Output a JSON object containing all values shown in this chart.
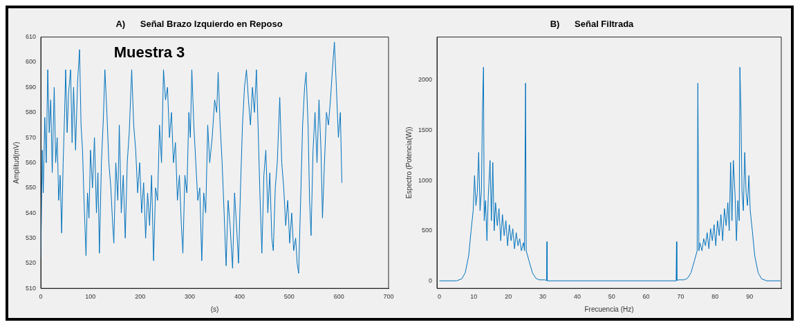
{
  "chart_data": [
    {
      "type": "line",
      "title": "A)      Señal Brazo Izquierdo en Reposo",
      "xlabel": "(s)",
      "ylabel": "Amplitud(mV)",
      "annotations": [
        "Muestra 3"
      ],
      "marker": "none",
      "xlim": [
        0,
        700
      ],
      "xticks": [
        0,
        100,
        200,
        300,
        400,
        500,
        600,
        700
      ],
      "ylim": [
        510,
        610
      ],
      "yticks": [
        510,
        520,
        530,
        540,
        550,
        560,
        570,
        580,
        590,
        600,
        610
      ],
      "series": [
        {
          "color": "#0072bd",
          "x": [
            0,
            3,
            5,
            8,
            11,
            14,
            17,
            20,
            23,
            27,
            30,
            33,
            36,
            39,
            42,
            45,
            48,
            50,
            53,
            56,
            60,
            63,
            66,
            70,
            74,
            78,
            81,
            84,
            87,
            91,
            94,
            97,
            100,
            104,
            108,
            112,
            115,
            118,
            122,
            126,
            129,
            133,
            137,
            141,
            144,
            147,
            151,
            155,
            158,
            162,
            166,
            170,
            174,
            178,
            183,
            187,
            191,
            195,
            199,
            203,
            207,
            211,
            215,
            219,
            223,
            227,
            231,
            235,
            239,
            243,
            247,
            251,
            255,
            259,
            263,
            267,
            271,
            275,
            279,
            283,
            286,
            290,
            294,
            298,
            301,
            304,
            308,
            312,
            316,
            320,
            324,
            328,
            332,
            336,
            340,
            345,
            350,
            354,
            357,
            361,
            365,
            369,
            373,
            377,
            381,
            386,
            390,
            394,
            398,
            402,
            406,
            410,
            414,
            418,
            422,
            426,
            430,
            434,
            438,
            441,
            445,
            449,
            453,
            457,
            461,
            465,
            468,
            472,
            476,
            481,
            485,
            489,
            493,
            497,
            501,
            505,
            509,
            513,
            516,
            519,
            523,
            527,
            531,
            534,
            538,
            541,
            544,
            548,
            552,
            556,
            560,
            564,
            567,
            571,
            575,
            579,
            583,
            587,
            591,
            595,
            599,
            603,
            606
          ],
          "values": [
            522,
            565,
            548,
            578,
            560,
            597,
            572,
            585,
            556,
            590,
            560,
            570,
            545,
            555,
            532,
            560,
            580,
            597,
            572,
            588,
            597,
            568,
            590,
            565,
            592,
            605,
            575,
            565,
            545,
            523,
            548,
            538,
            565,
            550,
            570,
            540,
            556,
            524,
            560,
            578,
            597,
            580,
            560,
            550,
            538,
            528,
            560,
            545,
            575,
            540,
            555,
            530,
            560,
            572,
            597,
            575,
            565,
            548,
            560,
            540,
            552,
            530,
            548,
            535,
            555,
            521,
            550,
            545,
            575,
            560,
            597,
            585,
            590,
            570,
            580,
            560,
            568,
            545,
            555,
            535,
            524,
            555,
            548,
            580,
            570,
            597,
            575,
            560,
            545,
            550,
            521,
            548,
            540,
            575,
            560,
            570,
            585,
            580,
            596,
            575,
            560,
            540,
            519,
            545,
            535,
            518,
            548,
            535,
            520,
            550,
            575,
            590,
            597,
            585,
            575,
            590,
            580,
            597,
            570,
            548,
            524,
            555,
            565,
            540,
            556,
            530,
            525,
            550,
            560,
            586,
            560,
            550,
            535,
            545,
            528,
            540,
            525,
            530,
            520,
            516,
            545,
            575,
            590,
            596,
            575,
            545,
            531,
            565,
            580,
            560,
            585,
            565,
            538,
            560,
            580,
            575,
            585,
            597,
            608,
            590,
            570,
            580,
            552
          ]
        }
      ]
    },
    {
      "type": "line",
      "title": "B)      Señal Filtrada",
      "xlabel": "Frecuencia (Hz)",
      "ylabel": "Espectro (Potencia(W))",
      "marker": "none",
      "xlim": [
        -0.7,
        99.2
      ],
      "xticks": [
        0,
        10,
        20,
        30,
        40,
        50,
        60,
        70,
        80,
        90
      ],
      "ylim": [
        -75,
        2430
      ],
      "yticks": [
        0,
        500,
        1000,
        1500,
        2000
      ],
      "series": [
        {
          "color": "#0072bd",
          "x": [
            0,
            5,
            6.5,
            7.5,
            8.5,
            9.2,
            9.8,
            10.2,
            10.6,
            11,
            11.4,
            11.8,
            12.2,
            12.5,
            12.8,
            13.0,
            13.4,
            13.8,
            14.2,
            14.7,
            15.1,
            15.5,
            15.9,
            16.3,
            16.8,
            17.3,
            17.8,
            18.3,
            18.8,
            19.3,
            19.8,
            20.3,
            20.8,
            21.3,
            21.8,
            22.3,
            22.8,
            23.3,
            23.8,
            24.4,
            24.7,
            25.0,
            25.2,
            26,
            27,
            28,
            29,
            30.5,
            31.1,
            31.2,
            31.3,
            68.7,
            68.8,
            68.9,
            69.5,
            71,
            72,
            73,
            74,
            74.8,
            75.0,
            75.3,
            75.6,
            76.2,
            76.7,
            77.2,
            77.7,
            78.2,
            78.7,
            79.2,
            79.7,
            80.2,
            80.7,
            81.2,
            81.7,
            82.2,
            82.7,
            83.2,
            83.7,
            84.1,
            84.5,
            84.9,
            85.3,
            85.8,
            86.2,
            86.6,
            87.0,
            87.2,
            87.5,
            87.8,
            88.2,
            88.6,
            89,
            89.4,
            89.8,
            90.2,
            90.8,
            91.5,
            92.5,
            93.5,
            95,
            99
          ],
          "values": [
            0,
            0,
            20,
            80,
            250,
            500,
            700,
            1050,
            750,
            880,
            1280,
            700,
            900,
            1700,
            2130,
            600,
            800,
            400,
            850,
            1200,
            600,
            1180,
            500,
            780,
            550,
            720,
            400,
            660,
            450,
            600,
            350,
            560,
            400,
            520,
            320,
            480,
            350,
            420,
            300,
            380,
            300,
            1970,
            300,
            200,
            80,
            25,
            10,
            10,
            5,
            390,
            0,
            0,
            390,
            5,
            10,
            10,
            25,
            80,
            200,
            300,
            1970,
            300,
            380,
            300,
            420,
            350,
            480,
            320,
            520,
            400,
            560,
            350,
            600,
            450,
            660,
            400,
            720,
            550,
            780,
            500,
            1180,
            600,
            1200,
            850,
            400,
            800,
            600,
            2130,
            1700,
            900,
            700,
            1280,
            880,
            750,
            1050,
            700,
            500,
            250,
            80,
            20,
            0,
            0
          ]
        }
      ]
    }
  ]
}
